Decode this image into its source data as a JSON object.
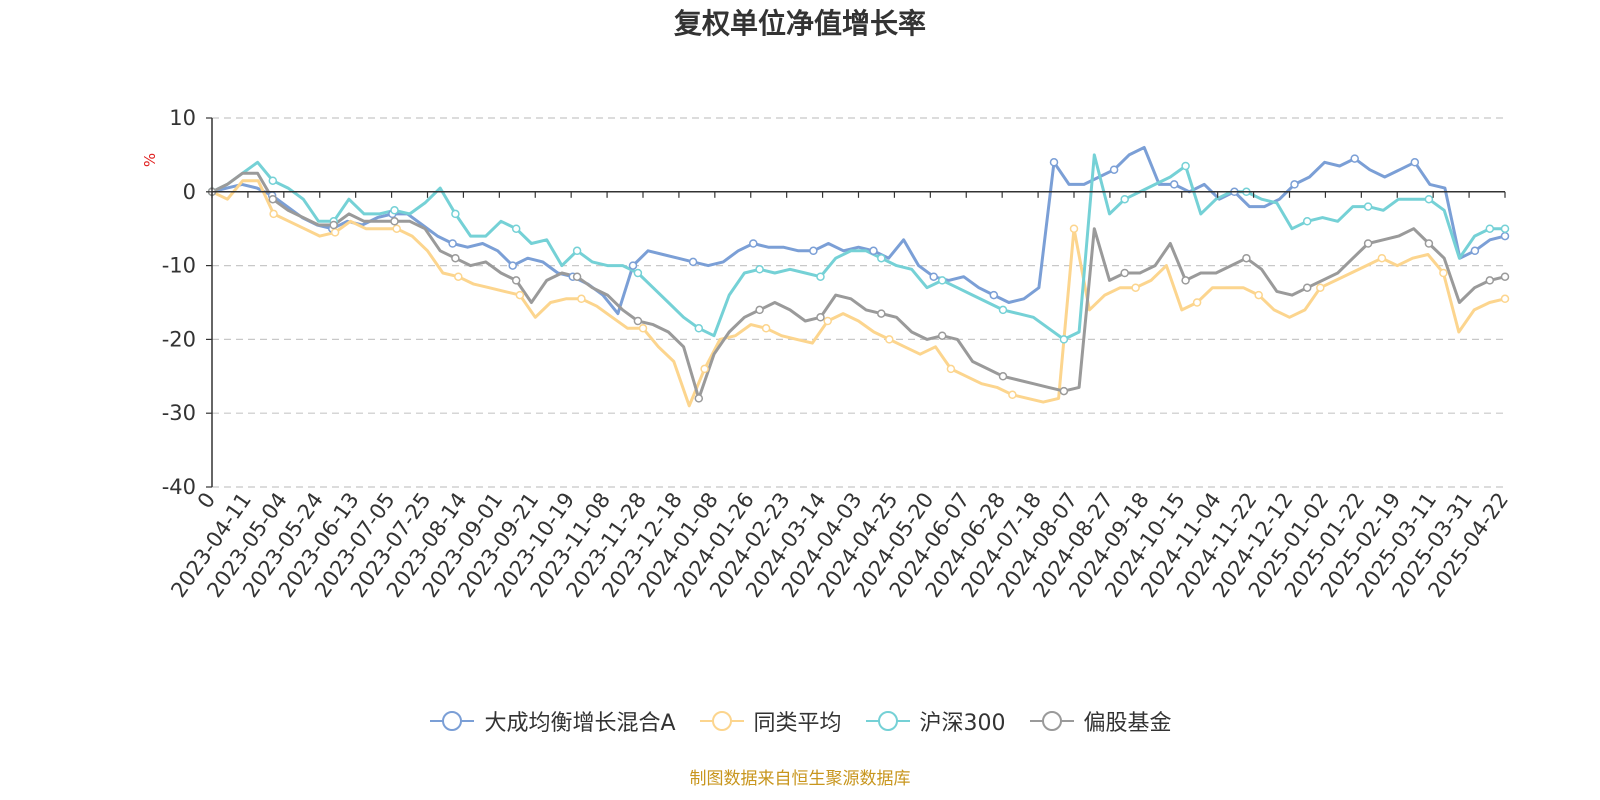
{
  "title": "复权单位净值增长率",
  "source_note": "制图数据来自恒生聚源数据库",
  "chart_data": {
    "type": "line",
    "title": "复权单位净值增长率",
    "ylabel": "%",
    "ylim": [
      -40,
      10
    ],
    "yticks": [
      10,
      0,
      -10,
      -20,
      -30,
      -40
    ],
    "grid": true,
    "legend_position": "bottom",
    "x_ticks": [
      "0",
      "2023-04-11",
      "2023-05-04",
      "2023-05-24",
      "2023-06-13",
      "2023-07-05",
      "2023-07-25",
      "2023-08-14",
      "2023-09-01",
      "2023-09-21",
      "2023-10-19",
      "2023-11-08",
      "2023-11-28",
      "2023-12-18",
      "2024-01-08",
      "2024-01-26",
      "2024-02-23",
      "2024-03-14",
      "2024-04-03",
      "2024-04-25",
      "2024-05-20",
      "2024-06-07",
      "2024-06-28",
      "2024-07-18",
      "2024-08-07",
      "2024-08-27",
      "2024-09-18",
      "2024-10-15",
      "2024-11-04",
      "2024-11-22",
      "2024-12-12",
      "2025-01-02",
      "2025-01-22",
      "2025-02-19",
      "2025-03-11",
      "2025-03-31",
      "2025-04-22"
    ],
    "series": [
      {
        "name": "大成均衡增长混合A",
        "color": "#7b9fd6",
        "values": [
          0,
          0.5,
          1,
          0.5,
          -0.5,
          -2,
          -3.5,
          -4.5,
          -5,
          -4,
          -4.5,
          -3.5,
          -3,
          -3,
          -4.5,
          -6,
          -7,
          -7.5,
          -7,
          -8,
          -10,
          -9,
          -9.5,
          -11,
          -11.5,
          -12.5,
          -14,
          -16.5,
          -10,
          -8,
          -8.5,
          -9,
          -9.5,
          -10,
          -9.5,
          -8,
          -7,
          -7.5,
          -7.5,
          -8,
          -8,
          -7,
          -8,
          -7.5,
          -8,
          -9,
          -6.5,
          -10,
          -11.5,
          -12,
          -11.5,
          -13,
          -14,
          -15,
          -14.5,
          -13,
          4,
          1,
          1,
          2,
          3,
          5,
          6,
          1,
          1,
          0,
          1,
          -1,
          0,
          -2,
          -2,
          -1,
          1,
          2,
          4,
          3.5,
          4.5,
          3,
          2,
          3,
          4,
          1,
          0.5,
          -9,
          -8,
          -6.5,
          -6
        ]
      },
      {
        "name": "同类平均",
        "color": "#fcd58e",
        "values": [
          0,
          -1,
          1.5,
          1.5,
          -3,
          -4,
          -5,
          -6,
          -5.5,
          -4,
          -5,
          -5,
          -5,
          -6,
          -8,
          -11,
          -11.5,
          -12.5,
          -13,
          -13.5,
          -14,
          -17,
          -15,
          -14.5,
          -14.5,
          -15.5,
          -17,
          -18.5,
          -18.5,
          -21,
          -23,
          -29,
          -24,
          -20,
          -19.5,
          -18,
          -18.5,
          -19.5,
          -20,
          -20.5,
          -17.5,
          -16.5,
          -17.5,
          -19,
          -20,
          -21,
          -22,
          -21,
          -24,
          -25,
          -26,
          -26.5,
          -27.5,
          -28,
          -28.5,
          -28,
          -5,
          -16,
          -14,
          -13,
          -13,
          -12,
          -10,
          -16,
          -15,
          -13,
          -13,
          -13,
          -14,
          -16,
          -17,
          -16,
          -13,
          -12,
          -11,
          -10,
          -9,
          -10,
          -9,
          -8.5,
          -11,
          -19,
          -16,
          -15,
          -14.5
        ]
      },
      {
        "name": "沪深300",
        "color": "#75d1d6",
        "values": [
          0,
          1,
          2.5,
          4,
          1.5,
          0.5,
          -1,
          -4,
          -4,
          -1,
          -3,
          -3,
          -2.5,
          -3,
          -1.5,
          0.5,
          -3,
          -6,
          -6,
          -4,
          -5,
          -7,
          -6.5,
          -10,
          -8,
          -9.5,
          -10,
          -10,
          -11,
          -13,
          -15,
          -17,
          -18.5,
          -19.5,
          -14,
          -11,
          -10.5,
          -11,
          -10.5,
          -11,
          -11.5,
          -9,
          -8,
          -8,
          -9,
          -10,
          -10.5,
          -13,
          -12,
          -13,
          -14,
          -15,
          -16,
          -16.5,
          -17,
          -18.5,
          -20,
          -19,
          5,
          -3,
          -1,
          0,
          1,
          2,
          3.5,
          -3,
          -1,
          0,
          0,
          -1,
          -1.5,
          -5,
          -4,
          -3.5,
          -4,
          -2,
          -2,
          -2.5,
          -1,
          -1,
          -1,
          -2.5,
          -9,
          -6,
          -5,
          -5
        ]
      },
      {
        "name": "偏股基金",
        "color": "#9a9a9a",
        "values": [
          0,
          1,
          2.5,
          2.5,
          -1,
          -2.5,
          -3.5,
          -4.5,
          -4.5,
          -3,
          -4,
          -4,
          -4,
          -4,
          -5,
          -8,
          -9,
          -10,
          -9.5,
          -11,
          -12,
          -15,
          -12,
          -11,
          -11.5,
          -13,
          -14,
          -16,
          -17.5,
          -18,
          -19,
          -21,
          -28,
          -22,
          -19,
          -17,
          -16,
          -15,
          -16,
          -17.5,
          -17,
          -14,
          -14.5,
          -16,
          -16.5,
          -17,
          -19,
          -20,
          -19.5,
          -20,
          -23,
          -24,
          -25,
          -25.5,
          -26,
          -26.5,
          -27,
          -26.5,
          -5,
          -12,
          -11,
          -11,
          -10,
          -7,
          -12,
          -11,
          -11,
          -10,
          -9,
          -10.5,
          -13.5,
          -14,
          -13,
          -12,
          -11,
          -9,
          -7,
          -6.5,
          -6,
          -5,
          -7,
          -9,
          -15,
          -13,
          -12,
          -11.5
        ]
      }
    ]
  }
}
